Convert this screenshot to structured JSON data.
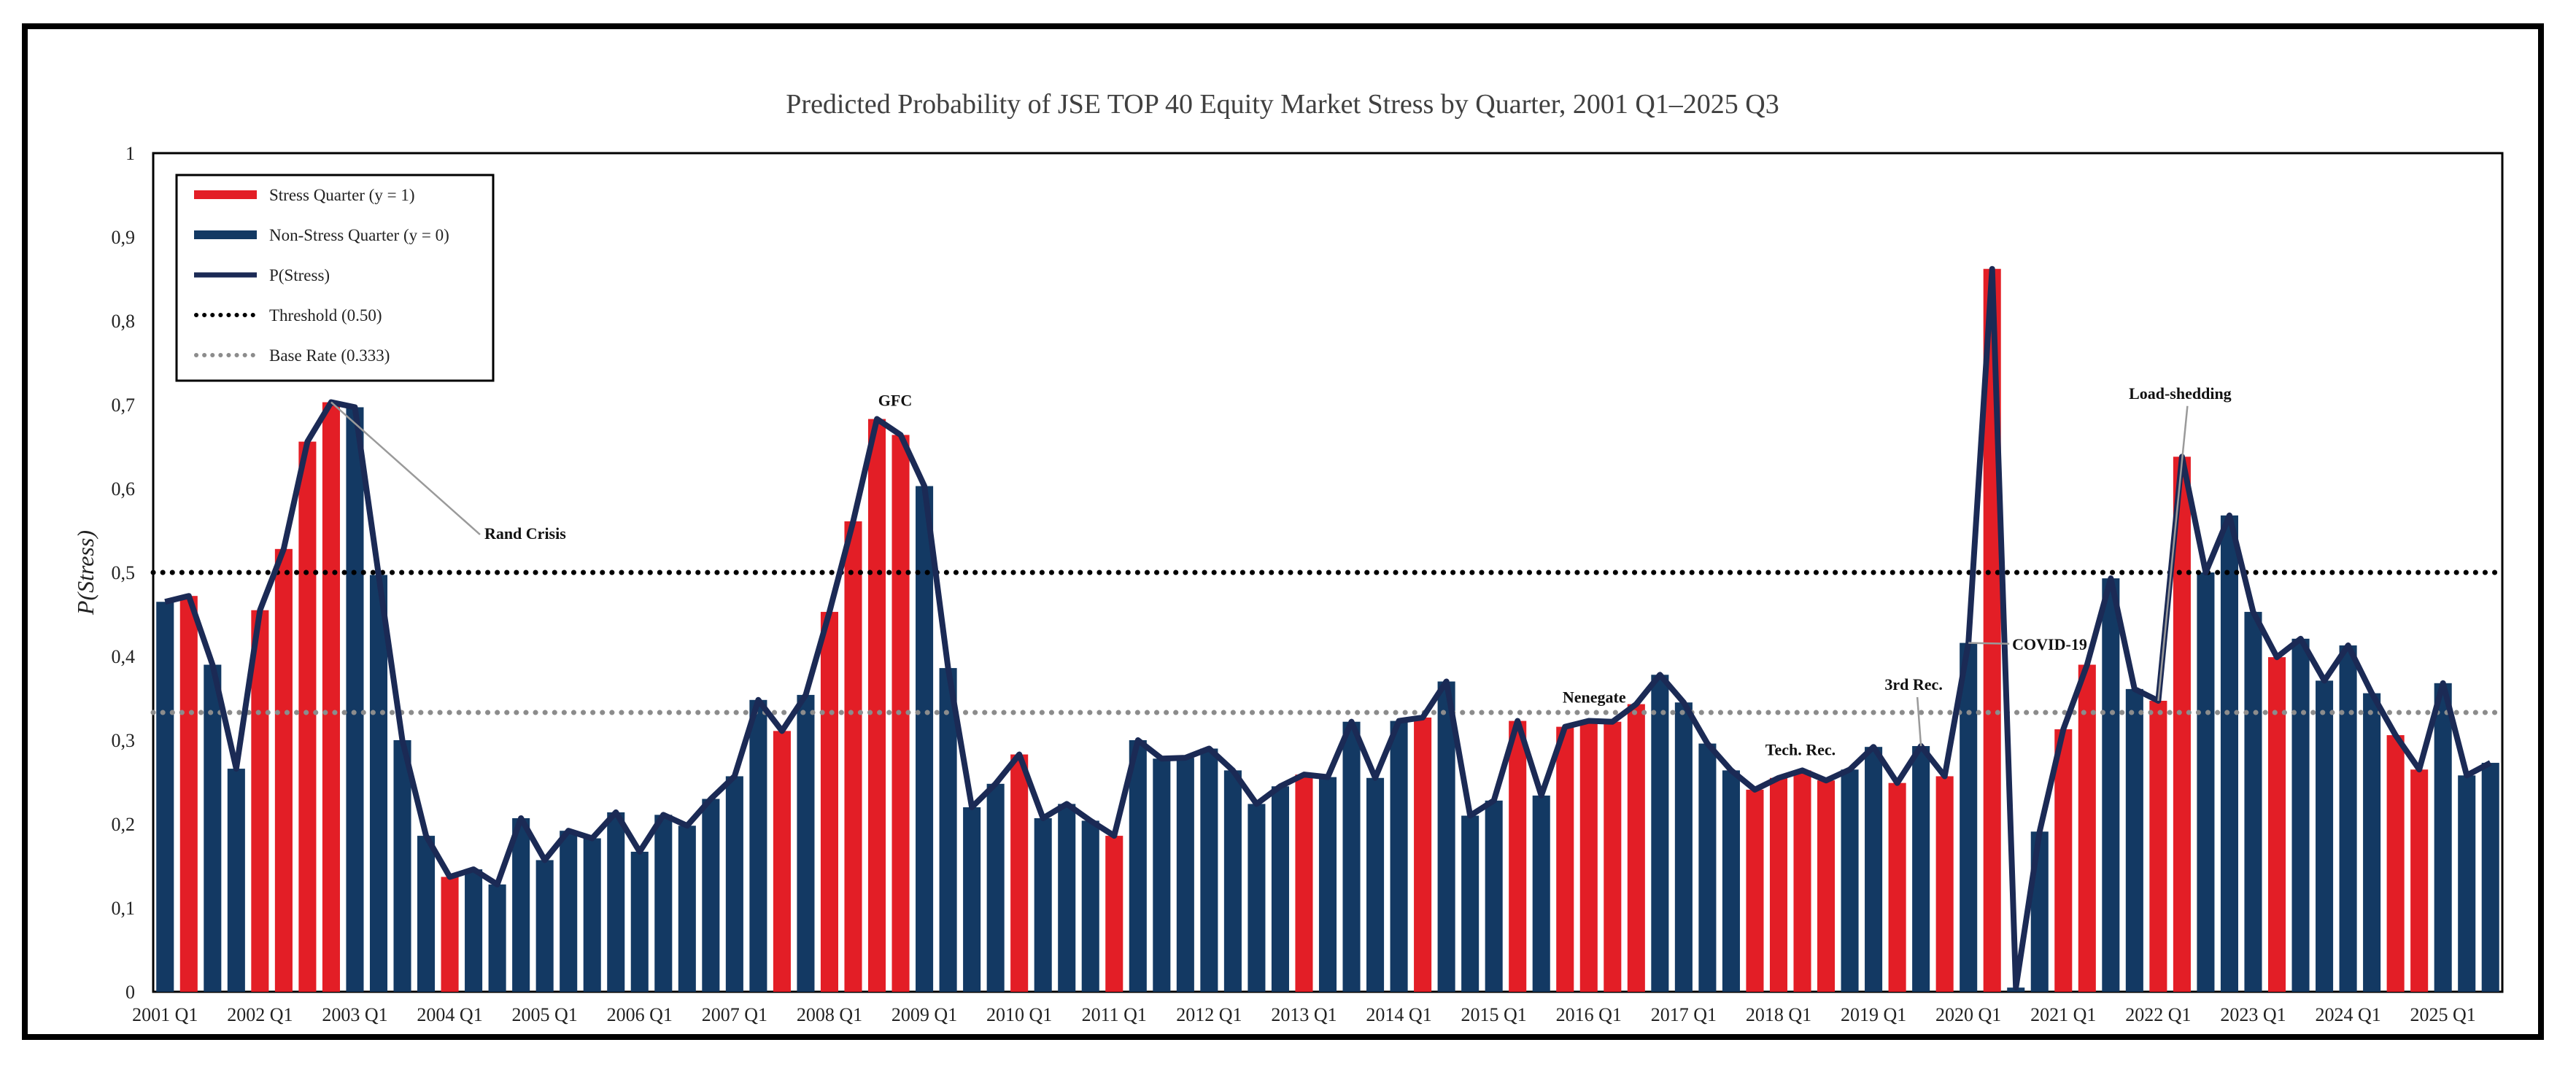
{
  "colors": {
    "stress": "#e31e26",
    "non_stress": "#133963",
    "line": "#1b2a55",
    "threshold": "#000000",
    "base_rate": "#8c8c8c"
  },
  "chart_data": {
    "type": "bar",
    "title": "Predicted Probability of JSE TOP 40 Equity Market Stress by Quarter, 2001 Q1–2025 Q3",
    "xlabel": "",
    "ylabel": "P(Stress)",
    "ylim": [
      0,
      1
    ],
    "yticks": [
      "0",
      "0,1",
      "0,2",
      "0,3",
      "0,4",
      "0,5",
      "0,6",
      "0,7",
      "0,8",
      "0,9",
      "1"
    ],
    "xtick_labels": [
      "2001 Q1",
      "2002 Q1",
      "2003 Q1",
      "2004 Q1",
      "2005 Q1",
      "2006 Q1",
      "2007 Q1",
      "2008 Q1",
      "2009 Q1",
      "2010 Q1",
      "2011 Q1",
      "2012 Q1",
      "2013 Q1",
      "2014 Q1",
      "2015 Q1",
      "2016 Q1",
      "2017 Q1",
      "2018 Q1",
      "2019 Q1",
      "2020 Q1",
      "2021 Q1",
      "2022 Q1",
      "2023 Q1",
      "2024 Q1",
      "2025 Q1"
    ],
    "grid": false,
    "legend_position": "top-left",
    "legend": {
      "stress": "Stress Quarter (y = 1)",
      "non_stress": "Non-Stress Quarter (y = 0)",
      "line": "P(Stress)",
      "threshold": "Threshold (0.50)",
      "base_rate": "Base Rate (0.333)"
    },
    "threshold": 0.5,
    "base_rate": 0.333,
    "x": [
      "2001 Q1",
      "2001 Q2",
      "2001 Q3",
      "2001 Q4",
      "2002 Q1",
      "2002 Q2",
      "2002 Q3",
      "2002 Q4",
      "2003 Q1",
      "2003 Q2",
      "2003 Q3",
      "2003 Q4",
      "2004 Q1",
      "2004 Q2",
      "2004 Q3",
      "2004 Q4",
      "2005 Q1",
      "2005 Q2",
      "2005 Q3",
      "2005 Q4",
      "2006 Q1",
      "2006 Q2",
      "2006 Q3",
      "2006 Q4",
      "2007 Q1",
      "2007 Q2",
      "2007 Q3",
      "2007 Q4",
      "2008 Q1",
      "2008 Q2",
      "2008 Q3",
      "2008 Q4",
      "2009 Q1",
      "2009 Q2",
      "2009 Q3",
      "2009 Q4",
      "2010 Q1",
      "2010 Q2",
      "2010 Q3",
      "2010 Q4",
      "2011 Q1",
      "2011 Q2",
      "2011 Q3",
      "2011 Q4",
      "2012 Q1",
      "2012 Q2",
      "2012 Q3",
      "2012 Q4",
      "2013 Q1",
      "2013 Q2",
      "2013 Q3",
      "2013 Q4",
      "2014 Q1",
      "2014 Q2",
      "2014 Q3",
      "2014 Q4",
      "2015 Q1",
      "2015 Q2",
      "2015 Q3",
      "2015 Q4",
      "2016 Q1",
      "2016 Q2",
      "2016 Q3",
      "2016 Q4",
      "2017 Q1",
      "2017 Q2",
      "2017 Q3",
      "2017 Q4",
      "2018 Q1",
      "2018 Q2",
      "2018 Q3",
      "2018 Q4",
      "2019 Q1",
      "2019 Q2",
      "2019 Q3",
      "2019 Q4",
      "2020 Q1",
      "2020 Q2",
      "2020 Q3",
      "2020 Q4",
      "2021 Q1",
      "2021 Q2",
      "2021 Q3",
      "2021 Q4",
      "2022 Q1",
      "2022 Q2",
      "2022 Q3",
      "2022 Q4",
      "2023 Q1",
      "2023 Q2",
      "2023 Q3",
      "2023 Q4",
      "2024 Q1",
      "2024 Q2",
      "2024 Q3",
      "2024 Q4",
      "2025 Q1",
      "2025 Q2",
      "2025 Q3"
    ],
    "values": [
      0.465,
      0.472,
      0.39,
      0.266,
      0.455,
      0.528,
      0.656,
      0.703,
      0.697,
      0.497,
      0.3,
      0.186,
      0.137,
      0.146,
      0.128,
      0.207,
      0.157,
      0.192,
      0.183,
      0.214,
      0.167,
      0.211,
      0.198,
      0.23,
      0.257,
      0.348,
      0.311,
      0.354,
      0.453,
      0.561,
      0.683,
      0.664,
      0.603,
      0.386,
      0.22,
      0.248,
      0.283,
      0.207,
      0.224,
      0.204,
      0.186,
      0.3,
      0.278,
      0.279,
      0.29,
      0.264,
      0.224,
      0.245,
      0.259,
      0.256,
      0.322,
      0.255,
      0.323,
      0.327,
      0.37,
      0.21,
      0.228,
      0.323,
      0.234,
      0.316,
      0.323,
      0.322,
      0.343,
      0.378,
      0.345,
      0.296,
      0.264,
      0.241,
      0.255,
      0.264,
      0.252,
      0.265,
      0.292,
      0.249,
      0.293,
      0.257,
      0.416,
      0.862,
      0.005,
      0.191,
      0.313,
      0.39,
      0.493,
      0.361,
      0.347,
      0.638,
      0.5,
      0.568,
      0.453,
      0.399,
      0.421,
      0.371,
      0.413,
      0.356,
      0.306,
      0.265,
      0.368,
      0.258,
      0.273
    ],
    "stress_flags": [
      0,
      1,
      0,
      0,
      1,
      1,
      1,
      1,
      0,
      0,
      0,
      0,
      1,
      0,
      0,
      0,
      0,
      0,
      0,
      0,
      0,
      0,
      0,
      0,
      0,
      0,
      1,
      0,
      1,
      1,
      1,
      1,
      0,
      0,
      0,
      0,
      1,
      0,
      0,
      0,
      1,
      0,
      0,
      0,
      0,
      0,
      0,
      0,
      1,
      0,
      0,
      0,
      0,
      1,
      0,
      0,
      0,
      1,
      0,
      1,
      1,
      1,
      1,
      0,
      0,
      0,
      0,
      1,
      1,
      1,
      1,
      0,
      0,
      1,
      0,
      1,
      0,
      1,
      0,
      0,
      1,
      1,
      0,
      0,
      1,
      1,
      0,
      0,
      0,
      1,
      0,
      0,
      0,
      0,
      1,
      1,
      0,
      0,
      0
    ],
    "annotations": [
      {
        "label": "Rand Crisis",
        "target": "2002 Q4"
      },
      {
        "label": "GFC",
        "target": "2008 Q3"
      },
      {
        "label": "Nenegate",
        "target": "2015 Q4"
      },
      {
        "label": "Tech. Rec.",
        "target": "2018 Q1"
      },
      {
        "label": "3rd Rec.",
        "target": "2019 Q3"
      },
      {
        "label": "COVID-19",
        "target": "2020 Q1"
      },
      {
        "label": "Load-shedding",
        "target": "2022 Q1"
      }
    ]
  }
}
